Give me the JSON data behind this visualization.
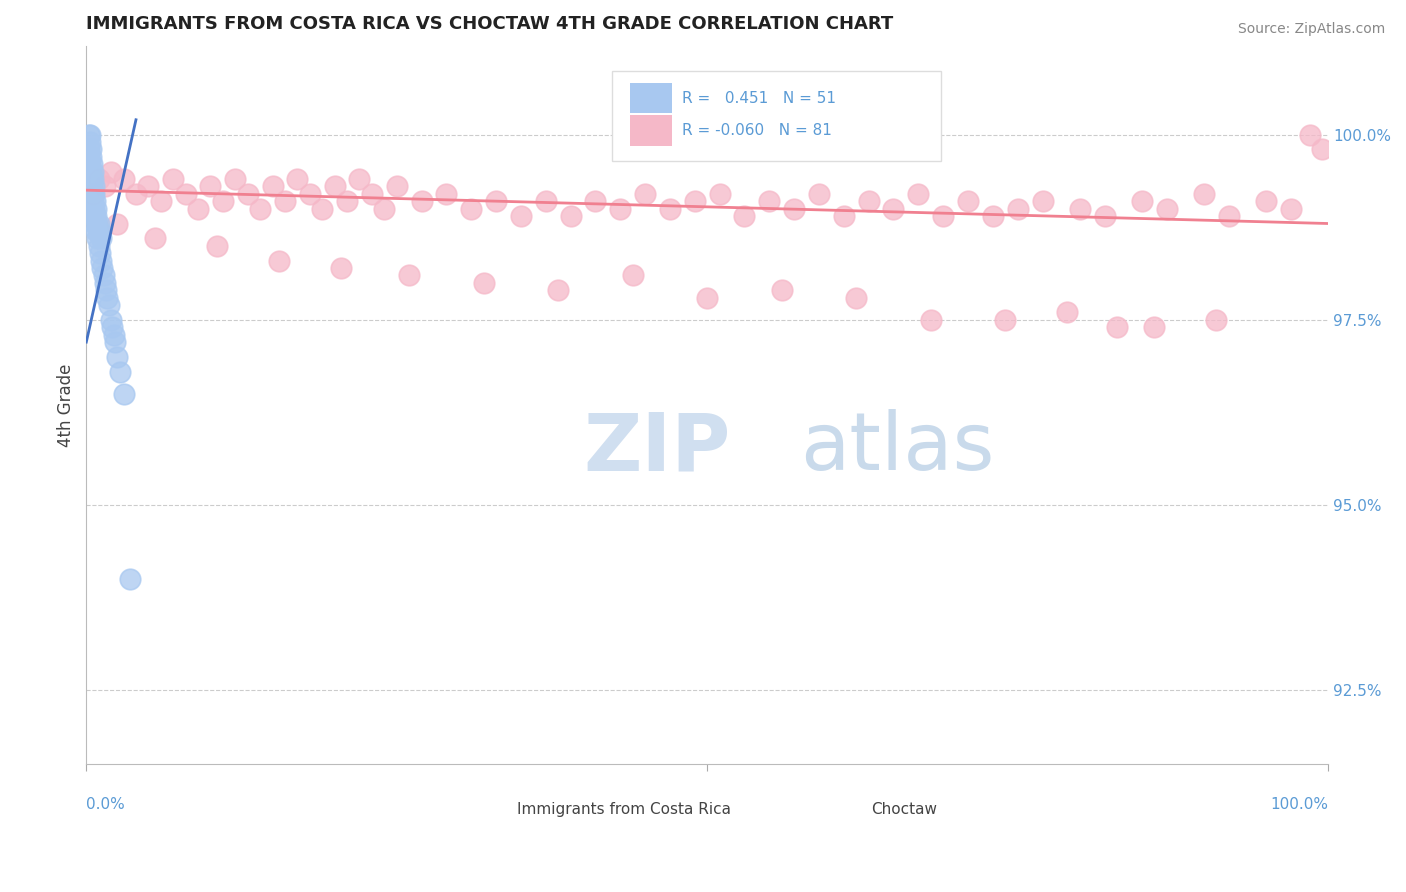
{
  "title": "IMMIGRANTS FROM COSTA RICA VS CHOCTAW 4TH GRADE CORRELATION CHART",
  "source": "Source: ZipAtlas.com",
  "ylabel": "4th Grade",
  "ylabel_right_labels": [
    "92.5%",
    "95.0%",
    "97.5%",
    "100.0%"
  ],
  "ylabel_right_values": [
    92.5,
    95.0,
    97.5,
    100.0
  ],
  "xlim": [
    0.0,
    100.0
  ],
  "ylim": [
    91.5,
    101.2
  ],
  "legend_r_blue": "0.451",
  "legend_n_blue": "51",
  "legend_r_pink": "-0.060",
  "legend_n_pink": "81",
  "blue_color": "#A8C8F0",
  "pink_color": "#F5B8C8",
  "blue_line_color": "#4472C4",
  "pink_line_color": "#F08090",
  "blue_x": [
    0.15,
    0.15,
    0.2,
    0.2,
    0.25,
    0.25,
    0.3,
    0.3,
    0.3,
    0.35,
    0.35,
    0.4,
    0.4,
    0.45,
    0.45,
    0.5,
    0.5,
    0.55,
    0.55,
    0.6,
    0.6,
    0.65,
    0.65,
    0.7,
    0.7,
    0.75,
    0.75,
    0.8,
    0.85,
    0.9,
    0.95,
    1.0,
    1.0,
    1.1,
    1.1,
    1.2,
    1.2,
    1.3,
    1.4,
    1.5,
    1.6,
    1.7,
    1.8,
    2.0,
    2.1,
    2.2,
    2.3,
    2.5,
    2.7,
    3.0,
    3.5
  ],
  "blue_y": [
    99.0,
    99.3,
    99.5,
    99.7,
    99.8,
    100.0,
    100.0,
    99.9,
    99.6,
    99.8,
    99.5,
    99.7,
    99.4,
    99.6,
    99.3,
    99.5,
    99.2,
    99.4,
    99.1,
    99.3,
    99.0,
    99.2,
    98.9,
    99.1,
    98.8,
    99.0,
    98.7,
    98.9,
    98.8,
    98.6,
    98.7,
    98.5,
    98.8,
    98.4,
    98.7,
    98.3,
    98.6,
    98.2,
    98.1,
    98.0,
    97.9,
    97.8,
    97.7,
    97.5,
    97.4,
    97.3,
    97.2,
    97.0,
    96.8,
    96.5,
    94.0
  ],
  "pink_x": [
    0.5,
    1.0,
    1.5,
    2.0,
    3.0,
    4.0,
    5.0,
    6.0,
    7.0,
    8.0,
    9.0,
    10.0,
    11.0,
    12.0,
    13.0,
    14.0,
    15.0,
    16.0,
    17.0,
    18.0,
    19.0,
    20.0,
    21.0,
    22.0,
    23.0,
    24.0,
    25.0,
    27.0,
    29.0,
    31.0,
    33.0,
    35.0,
    37.0,
    39.0,
    41.0,
    43.0,
    45.0,
    47.0,
    49.0,
    51.0,
    53.0,
    55.0,
    57.0,
    59.0,
    61.0,
    63.0,
    65.0,
    67.0,
    69.0,
    71.0,
    73.0,
    75.0,
    77.0,
    80.0,
    82.0,
    85.0,
    87.0,
    90.0,
    92.0,
    95.0,
    97.0,
    98.5,
    2.5,
    5.5,
    10.5,
    15.5,
    20.5,
    26.0,
    32.0,
    38.0,
    44.0,
    50.0,
    56.0,
    62.0,
    68.0,
    74.0,
    79.0,
    83.0,
    86.0,
    91.0,
    99.5
  ],
  "pink_y": [
    99.2,
    99.4,
    99.3,
    99.5,
    99.4,
    99.2,
    99.3,
    99.1,
    99.4,
    99.2,
    99.0,
    99.3,
    99.1,
    99.4,
    99.2,
    99.0,
    99.3,
    99.1,
    99.4,
    99.2,
    99.0,
    99.3,
    99.1,
    99.4,
    99.2,
    99.0,
    99.3,
    99.1,
    99.2,
    99.0,
    99.1,
    98.9,
    99.1,
    98.9,
    99.1,
    99.0,
    99.2,
    99.0,
    99.1,
    99.2,
    98.9,
    99.1,
    99.0,
    99.2,
    98.9,
    99.1,
    99.0,
    99.2,
    98.9,
    99.1,
    98.9,
    99.0,
    99.1,
    99.0,
    98.9,
    99.1,
    99.0,
    99.2,
    98.9,
    99.1,
    99.0,
    100.0,
    98.8,
    98.6,
    98.5,
    98.3,
    98.2,
    98.1,
    98.0,
    97.9,
    98.1,
    97.8,
    97.9,
    97.8,
    97.5,
    97.5,
    97.6,
    97.4,
    97.4,
    97.5,
    99.8
  ],
  "blue_trend_x": [
    0.0,
    4.0
  ],
  "blue_trend_y_start": 97.2,
  "blue_trend_y_end": 100.2,
  "pink_trend_x": [
    0.0,
    100.0
  ],
  "pink_trend_y_start": 99.25,
  "pink_trend_y_end": 98.8
}
